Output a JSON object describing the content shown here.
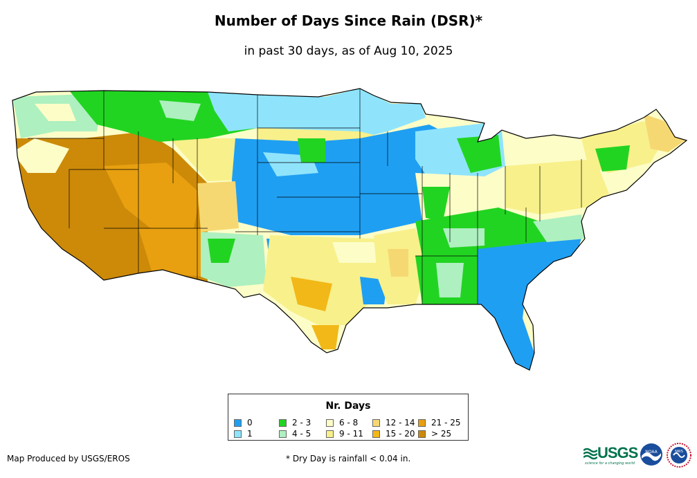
{
  "title": "Number of Days Since Rain (DSR)*",
  "subtitle": "in past 30 days, as of Aug 10, 2025",
  "legend": {
    "title": "Nr. Days",
    "items": [
      {
        "label": "0",
        "color": "#1f9ff2"
      },
      {
        "label": "1",
        "color": "#8fe4fc"
      },
      {
        "label": "2 - 3",
        "color": "#22d422"
      },
      {
        "label": "4 - 5",
        "color": "#aef0c0"
      },
      {
        "label": "6 - 8",
        "color": "#fdfdc8"
      },
      {
        "label": "9 - 11",
        "color": "#f8f08a"
      },
      {
        "label": "12 - 14",
        "color": "#f6d872"
      },
      {
        "label": "15 - 20",
        "color": "#f2b818"
      },
      {
        "label": "21 - 25",
        "color": "#e8a010"
      },
      {
        "label": "> 25",
        "color": "#cc8a08"
      }
    ]
  },
  "credit": "Map Produced by USGS/EROS",
  "footnote": "* Dry Day is rainfall < 0.04 in.",
  "logos": {
    "usgs": "USGS",
    "usgs_tagline": "science for a changing world",
    "noaa": "NOAA",
    "nws": "NWS"
  }
}
